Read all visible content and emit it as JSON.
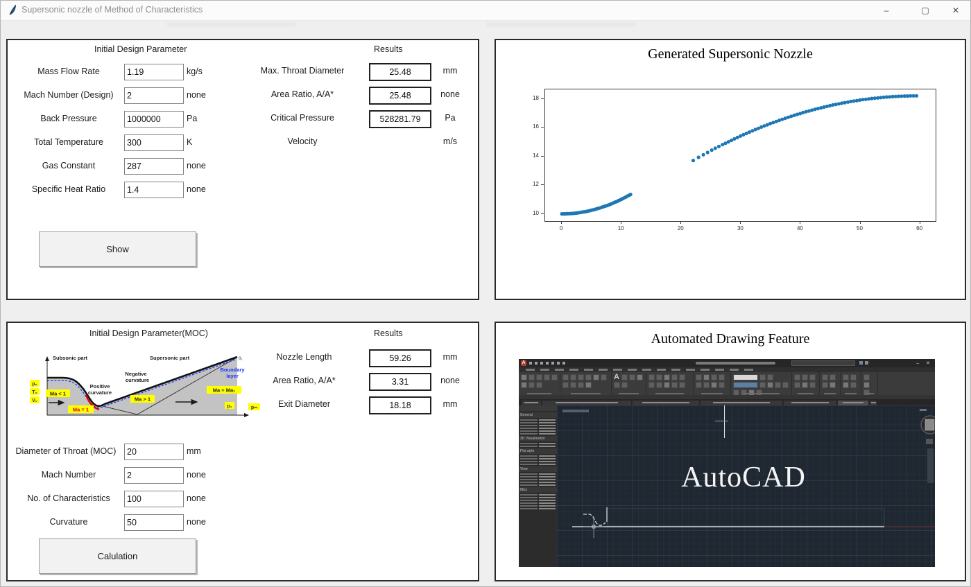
{
  "window": {
    "title": "Supersonic nozzle of Method of Characteristics",
    "minimize": "–",
    "maximize": "▢",
    "close": "✕"
  },
  "panel_design": {
    "header": "Initial Design Parameter",
    "results_header": "Results",
    "fields": [
      {
        "label": "Mass Flow Rate",
        "value": "1.19",
        "unit": "kg/s"
      },
      {
        "label": "Mach Number (Design)",
        "value": "2",
        "unit": "none"
      },
      {
        "label": "Back Pressure",
        "value": "1000000",
        "unit": "Pa"
      },
      {
        "label": "Total Temperature",
        "value": "300",
        "unit": "K"
      },
      {
        "label": "Gas Constant",
        "value": "287",
        "unit": "none"
      },
      {
        "label": "Specific Heat Ratio",
        "value": "1.4",
        "unit": "none"
      }
    ],
    "results": [
      {
        "label": "Max. Throat Diameter",
        "value": "25.48",
        "unit": "mm"
      },
      {
        "label": "Area Ratio, A/A*",
        "value": "25.48",
        "unit": "none"
      },
      {
        "label": "Critical Pressure",
        "value": "528281.79",
        "unit": "Pa"
      },
      {
        "label": "Velocity",
        "value": "",
        "unit": "m/s"
      }
    ],
    "button": "Show"
  },
  "panel_chart": {
    "title": "Generated Supersonic Nozzle"
  },
  "chart_data": {
    "type": "scatter",
    "title": "Generated Supersonic Nozzle",
    "xlabel": "",
    "ylabel": "",
    "xlim": [
      -2.8,
      62.6
    ],
    "ylim": [
      9.5,
      18.65
    ],
    "xticks": [
      0,
      10,
      20,
      30,
      40,
      50,
      60
    ],
    "yticks": [
      10,
      12,
      14,
      16,
      18
    ],
    "grid": false,
    "legend": "none",
    "marker_color": "#1f77b4",
    "marker_radius": 2.6,
    "series": [
      {
        "name": "subsonic contour",
        "x": [
          0,
          0.25,
          0.5,
          0.75,
          1,
          1.25,
          1.5,
          1.75,
          2,
          2.25,
          2.5,
          2.75,
          3,
          3.25,
          3.5,
          3.75,
          4,
          4.25,
          4.5,
          4.75,
          5,
          5.25,
          5.5,
          5.75,
          6,
          6.25,
          6.5,
          6.75,
          7,
          7.25,
          7.5,
          7.75,
          8,
          8.25,
          8.5,
          8.75,
          9,
          9.25,
          9.5,
          9.75,
          10,
          10.25,
          10.5,
          10.75,
          11,
          11.25,
          11.5
        ],
        "y": [
          10,
          10,
          10,
          10.01,
          10.01,
          10.02,
          10.02,
          10.03,
          10.04,
          10.05,
          10.06,
          10.08,
          10.09,
          10.11,
          10.13,
          10.14,
          10.16,
          10.18,
          10.21,
          10.23,
          10.26,
          10.28,
          10.31,
          10.34,
          10.37,
          10.4,
          10.43,
          10.47,
          10.5,
          10.54,
          10.57,
          10.61,
          10.65,
          10.69,
          10.74,
          10.78,
          10.83,
          10.87,
          10.92,
          10.97,
          11.02,
          11.07,
          11.13,
          11.18,
          11.24,
          11.29,
          11.35
        ]
      },
      {
        "name": "supersonic contour",
        "x": [
          22,
          22.9,
          23.7,
          24.4,
          25.1,
          25.7,
          26.3,
          26.9,
          27.4,
          27.9,
          28.4,
          28.9,
          29.4,
          29.9,
          30.4,
          30.9,
          31.4,
          31.9,
          32.4,
          32.9,
          33.4,
          33.9,
          34.4,
          34.9,
          35.4,
          35.9,
          36.4,
          36.9,
          37.4,
          37.9,
          38.4,
          38.9,
          39.4,
          39.9,
          40.4,
          40.9,
          41.4,
          41.9,
          42.4,
          42.9,
          43.4,
          43.9,
          44.4,
          44.9,
          45.4,
          45.9,
          46.4,
          46.9,
          47.4,
          47.9,
          48.4,
          48.9,
          49.4,
          49.9,
          50.4,
          50.9,
          51.4,
          51.9,
          52.4,
          52.9,
          53.4,
          53.9,
          54.4,
          54.9,
          55.4,
          55.9,
          56.4,
          56.9,
          57.4,
          57.9,
          58.4,
          58.9,
          59.4
        ],
        "y": [
          13.71,
          13.93,
          14.11,
          14.27,
          14.43,
          14.56,
          14.68,
          14.81,
          14.91,
          15.01,
          15.11,
          15.21,
          15.31,
          15.41,
          15.5,
          15.59,
          15.68,
          15.77,
          15.86,
          15.94,
          16.03,
          16.11,
          16.19,
          16.27,
          16.35,
          16.42,
          16.5,
          16.57,
          16.64,
          16.71,
          16.78,
          16.85,
          16.91,
          16.97,
          17.04,
          17.1,
          17.15,
          17.21,
          17.27,
          17.32,
          17.37,
          17.42,
          17.47,
          17.52,
          17.57,
          17.61,
          17.65,
          17.69,
          17.73,
          17.77,
          17.81,
          17.84,
          17.87,
          17.91,
          17.94,
          17.96,
          17.99,
          18.02,
          18.04,
          18.06,
          18.08,
          18.1,
          18.12,
          18.13,
          18.15,
          18.16,
          18.17,
          18.18,
          18.19,
          18.19,
          18.2,
          18.2,
          18.2
        ]
      }
    ]
  },
  "panel_moc": {
    "header": "Initial Design Parameter(MOC)",
    "results_header": "Results",
    "results": [
      {
        "label": "Nozzle Length",
        "value": "59.26",
        "unit": "mm"
      },
      {
        "label": "Area Ratio, A/A*",
        "value": "3.31",
        "unit": "none"
      },
      {
        "label": "Exit Diameter",
        "value": "18.18",
        "unit": "mm"
      }
    ],
    "fields": [
      {
        "label": "Diameter of Throat (MOC)",
        "value": "20",
        "unit": "mm"
      },
      {
        "label": "Mach Number",
        "value": "2",
        "unit": "none"
      },
      {
        "label": "No. of Characteristics",
        "value": "100",
        "unit": "none"
      },
      {
        "label": "Curvature",
        "value": "50",
        "unit": "none"
      }
    ],
    "button": "Calulation",
    "diagram": {
      "subsonic": "Subsonic part",
      "supersonic": "Supersonic part",
      "negative": [
        "Negative",
        "curvature"
      ],
      "positive": [
        "Positive",
        "curvature"
      ],
      "boundary": [
        "Boundary",
        "layer"
      ],
      "theta": "θ₁",
      "p0": "p₀",
      "t0": "T₀",
      "v0": "V₀",
      "ma_lt": "Ma < 1",
      "ma_eq": "Ma = 1",
      "ma_gt": "Ma > 1",
      "ma_exit": "Ma = Ma₁",
      "p1": "p₁",
      "pinf": "p∞"
    }
  },
  "panel_autocad": {
    "title": "Automated Drawing Feature",
    "watermark": "AutoCAD",
    "palette_sections": [
      "General",
      "3D Visualization",
      "Plot style",
      "View",
      "Misc"
    ]
  },
  "colors": {
    "accent_blue": "#1f77b4",
    "highlight_yellow": "#ffff00",
    "sonic_red": "#e60000",
    "boundary_blue": "#1533ff",
    "canvas_dark": "#1f2731"
  }
}
